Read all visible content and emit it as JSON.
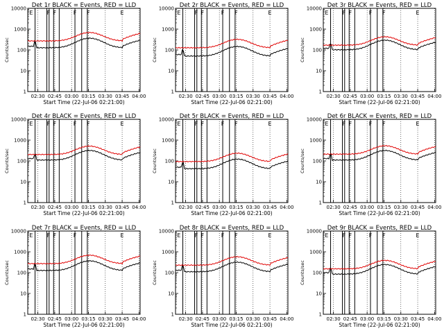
{
  "chart_data": {
    "type": "line",
    "layout": "3x3 grid",
    "x_ticks": [
      "02:30",
      "02:45",
      "03:00",
      "03:15",
      "03:30",
      "03:45",
      "04:00"
    ],
    "x_range": [
      "02:21",
      "04:01"
    ],
    "y_scale": "log",
    "y_range": [
      1,
      10000
    ],
    "y_ticks": [
      "1",
      "10",
      "100",
      "1000",
      "10000"
    ],
    "legend": "BLACK = Events, RED = LLD",
    "panels": [
      {
        "title": "Det 1r  BLACK = Events, RED = LLD",
        "xlabel": "Start Time (22-Jul-06 02:21:00)",
        "ylabel": "Counts/sec",
        "event_base": 150,
        "lld_base": 320,
        "markers": [
          "E",
          "F",
          "F",
          "F",
          "F",
          "E"
        ]
      },
      {
        "title": "Det 2r  BLACK = Events, RED = LLD",
        "xlabel": "Start Time (22-Jul-06 02:21:00)",
        "ylabel": "Counts/sec",
        "event_base": 60,
        "lld_base": 150,
        "markers": [
          "E",
          "F",
          "F",
          "F",
          "F",
          "E"
        ]
      },
      {
        "title": "Det 3r  BLACK = Events, RED = LLD",
        "xlabel": "Start Time (22-Jul-06 02:21:00)",
        "ylabel": "Counts/sec",
        "event_base": 120,
        "lld_base": 200,
        "markers": [
          "E",
          "F",
          "F",
          "F",
          "F",
          "E"
        ]
      },
      {
        "title": "Det 4r  BLACK = Events, RED = LLD",
        "xlabel": "Start Time (22-Jul-06 02:21:00)",
        "ylabel": "Counts/sec",
        "event_base": 130,
        "lld_base": 240,
        "markers": [
          "E",
          "F",
          "F",
          "F",
          "F",
          "E"
        ]
      },
      {
        "title": "Det 5r  BLACK = Events, RED = LLD",
        "xlabel": "Start Time (22-Jul-06 02:21:00)",
        "ylabel": "Counts/sec",
        "event_base": 50,
        "lld_base": 110,
        "markers": [
          "E",
          "F",
          "F",
          "F",
          "F",
          "E"
        ]
      },
      {
        "title": "Det 6r  BLACK = Events, RED = LLD",
        "xlabel": "Start Time (22-Jul-06 02:21:00)",
        "ylabel": "Counts/sec",
        "event_base": 130,
        "lld_base": 250,
        "markers": [
          "E",
          "F",
          "F",
          "F",
          "F",
          "E"
        ]
      },
      {
        "title": "Det 7r  BLACK = Events, RED = LLD",
        "xlabel": "Start Time (22-Jul-06 02:21:00)",
        "ylabel": "Counts/sec",
        "event_base": 150,
        "lld_base": 320,
        "markers": [
          "E",
          "F",
          "F",
          "F",
          "F",
          "E"
        ]
      },
      {
        "title": "Det 8r  BLACK = Events, RED = LLD",
        "xlabel": "Start Time (22-Jul-06 02:21:00)",
        "ylabel": "Counts/sec",
        "event_base": 130,
        "lld_base": 270,
        "markers": [
          "E",
          "F",
          "F",
          "F",
          "F",
          "E"
        ]
      },
      {
        "title": "Det 9r  BLACK = Events, RED = LLD",
        "xlabel": "Start Time (22-Jul-06 02:21:00)",
        "ylabel": "Counts/sec",
        "event_base": 100,
        "lld_base": 180,
        "markers": [
          "E",
          "F",
          "F",
          "F",
          "F",
          "E"
        ]
      }
    ],
    "series_colors": {
      "events": "#000000",
      "lld": "#e00000"
    }
  }
}
